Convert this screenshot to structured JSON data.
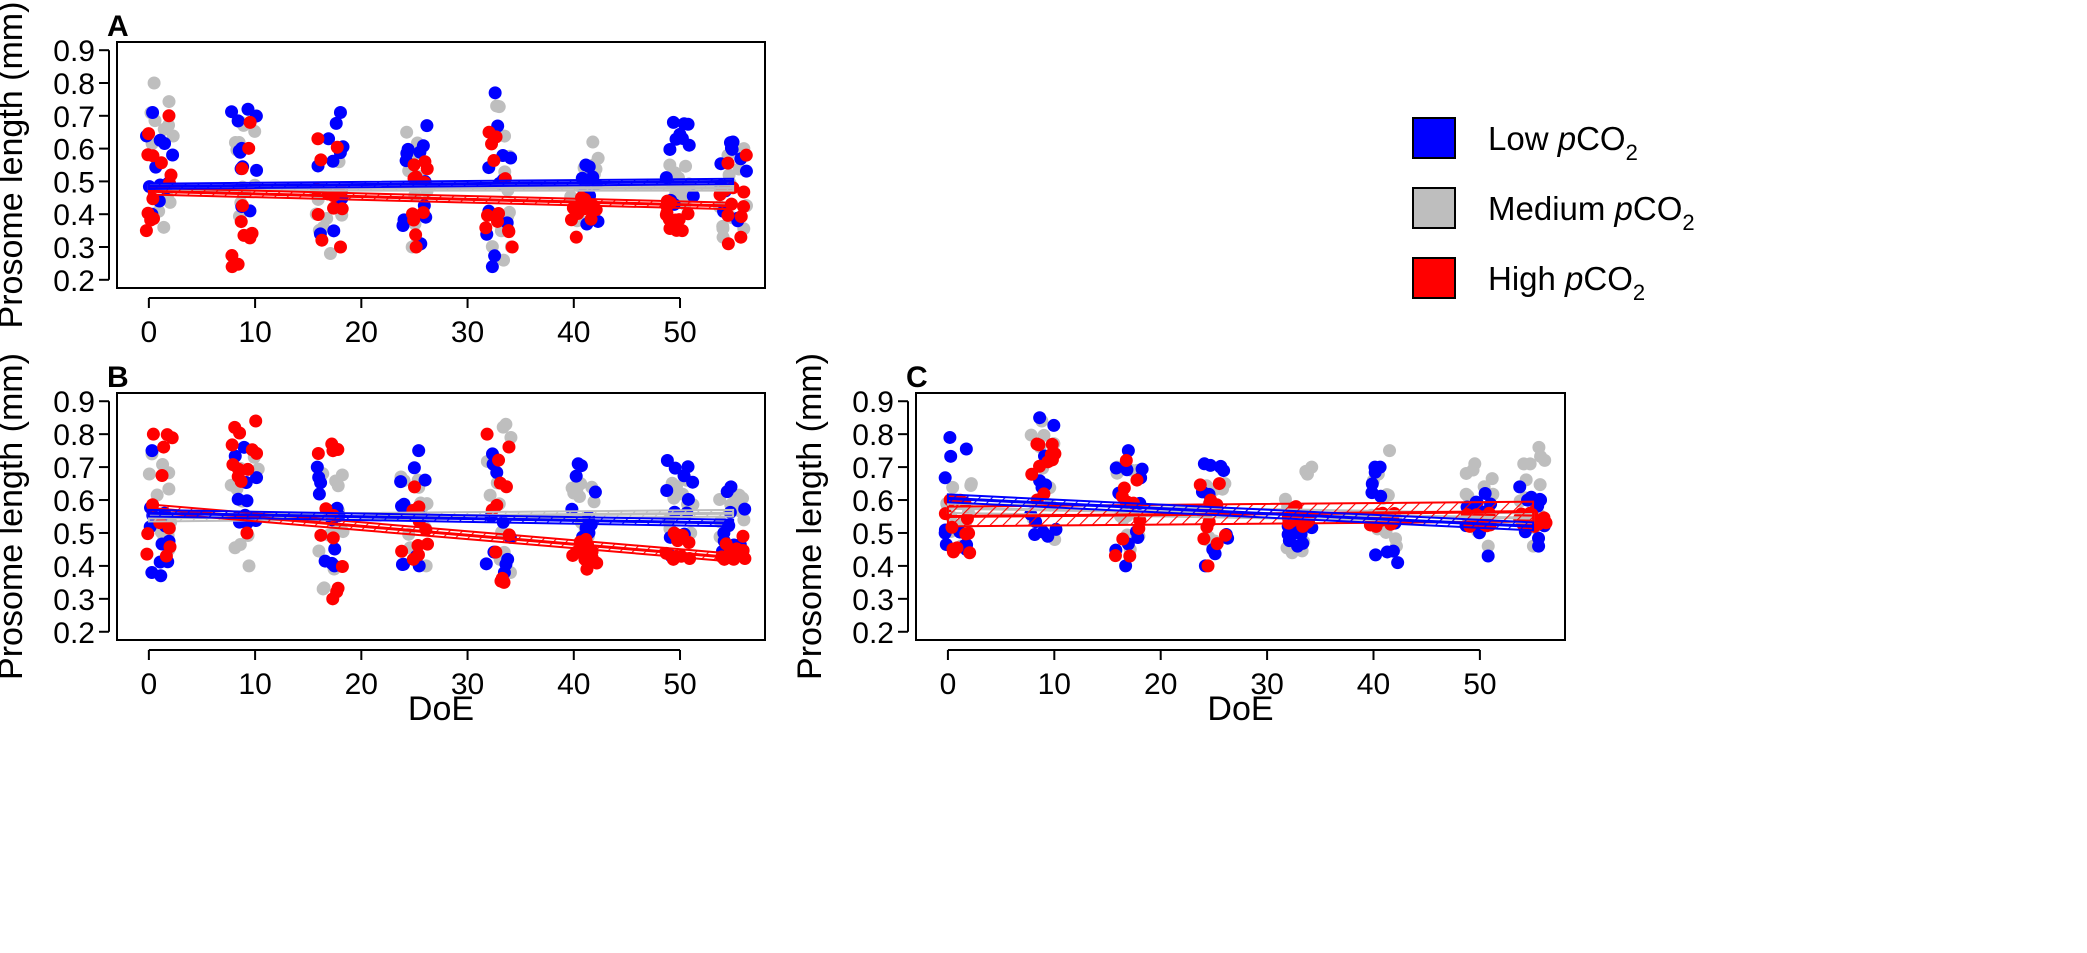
{
  "colors": {
    "low": "#0000ff",
    "medium": "#bebebe",
    "high": "#ff0000"
  },
  "legend": [
    {
      "key": "low",
      "prefix": "Low ",
      "italic": "p",
      "suffix": "CO",
      "sub": "2"
    },
    {
      "key": "medium",
      "prefix": "Medium ",
      "italic": "p",
      "suffix": "CO",
      "sub": "2"
    },
    {
      "key": "high",
      "prefix": "High ",
      "italic": "p",
      "suffix": "CO",
      "sub": "2"
    }
  ],
  "chart_data": [
    {
      "id": "A",
      "type": "scatter",
      "panel_label": "A",
      "ylabel": "Prosome length (mm)",
      "xlabel": "",
      "xlim": [
        -3,
        58
      ],
      "ylim": [
        0.175,
        0.925
      ],
      "xticks": [
        "0",
        "10",
        "20",
        "30",
        "40",
        "50"
      ],
      "yticks": [
        "0.2",
        "0.3",
        "0.4",
        "0.5",
        "0.6",
        "0.7",
        "0.8",
        "0.9"
      ],
      "days": [
        1,
        9,
        17,
        25,
        33,
        41,
        50,
        55
      ],
      "series": [
        {
          "name": "Low pCO2",
          "key": "low",
          "trend": [
            0.485,
            0.5
          ],
          "band": 0.008,
          "ranges": [
            [
              0.4,
              0.71
            ],
            [
              0.41,
              0.72
            ],
            [
              0.34,
              0.71
            ],
            [
              0.31,
              0.67
            ],
            [
              0.24,
              0.77
            ],
            [
              0.37,
              0.55
            ],
            [
              0.43,
              0.68
            ],
            [
              0.38,
              0.62
            ]
          ]
        },
        {
          "name": "Medium pCO2",
          "key": "medium",
          "trend": [
            0.48,
            0.48
          ],
          "band": 0.008,
          "ranges": [
            [
              0.36,
              0.8
            ],
            [
              0.34,
              0.68
            ],
            [
              0.28,
              0.56
            ],
            [
              0.3,
              0.65
            ],
            [
              0.26,
              0.73
            ],
            [
              0.38,
              0.62
            ],
            [
              0.43,
              0.55
            ],
            [
              0.33,
              0.6
            ]
          ]
        },
        {
          "name": "High pCO2",
          "key": "high",
          "trend": [
            0.47,
            0.425
          ],
          "band": 0.01,
          "ranges": [
            [
              0.35,
              0.7
            ],
            [
              0.24,
              0.68
            ],
            [
              0.3,
              0.63
            ],
            [
              0.3,
              0.56
            ],
            [
              0.3,
              0.65
            ],
            [
              0.33,
              0.45
            ],
            [
              0.35,
              0.44
            ],
            [
              0.31,
              0.58
            ]
          ]
        }
      ]
    },
    {
      "id": "B",
      "type": "scatter",
      "panel_label": "B",
      "ylabel": "Prosome length (mm)",
      "xlabel": "DoE",
      "xlim": [
        -3,
        58
      ],
      "ylim": [
        0.175,
        0.925
      ],
      "xticks": [
        "0",
        "10",
        "20",
        "30",
        "40",
        "50"
      ],
      "yticks": [
        "0.2",
        "0.3",
        "0.4",
        "0.5",
        "0.6",
        "0.7",
        "0.8",
        "0.9"
      ],
      "days": [
        1,
        9,
        17,
        25,
        33,
        41,
        50,
        55
      ],
      "series": [
        {
          "name": "Low pCO2",
          "key": "low",
          "trend": [
            0.56,
            0.53
          ],
          "band": 0.01,
          "ranges": [
            [
              0.37,
              0.75
            ],
            [
              0.53,
              0.76
            ],
            [
              0.4,
              0.7
            ],
            [
              0.4,
              0.75
            ],
            [
              0.38,
              0.74
            ],
            [
              0.45,
              0.71
            ],
            [
              0.43,
              0.72
            ],
            [
              0.44,
              0.64
            ]
          ]
        },
        {
          "name": "Medium pCO2",
          "key": "medium",
          "trend": [
            0.545,
            0.56
          ],
          "band": 0.01,
          "ranges": [
            [
              0.45,
              0.74
            ],
            [
              0.4,
              0.73
            ],
            [
              0.33,
              0.68
            ],
            [
              0.4,
              0.67
            ],
            [
              0.38,
              0.83
            ],
            [
              0.47,
              0.65
            ],
            [
              0.5,
              0.66
            ],
            [
              0.45,
              0.62
            ]
          ]
        },
        {
          "name": "High pCO2",
          "key": "high",
          "trend": [
            0.575,
            0.425
          ],
          "band": 0.012,
          "ranges": [
            [
              0.43,
              0.8
            ],
            [
              0.5,
              0.84
            ],
            [
              0.3,
              0.77
            ],
            [
              0.42,
              0.64
            ],
            [
              0.35,
              0.8
            ],
            [
              0.39,
              0.48
            ],
            [
              0.42,
              0.5
            ],
            [
              0.42,
              0.49
            ]
          ]
        }
      ]
    },
    {
      "id": "C",
      "type": "scatter",
      "panel_label": "C",
      "ylabel": "Prosome length (mm)",
      "xlabel": "DoE",
      "xlim": [
        -3,
        58
      ],
      "ylim": [
        0.175,
        0.925
      ],
      "xticks": [
        "0",
        "10",
        "20",
        "30",
        "40",
        "50"
      ],
      "yticks": [
        "0.2",
        "0.3",
        "0.4",
        "0.5",
        "0.6",
        "0.7",
        "0.8",
        "0.9"
      ],
      "days": [
        1,
        9,
        17,
        25,
        33,
        41,
        50,
        55
      ],
      "series": [
        {
          "name": "Low pCO2",
          "key": "low",
          "trend": [
            0.605,
            0.52
          ],
          "band": 0.012,
          "ranges": [
            [
              0.45,
              0.79
            ],
            [
              0.49,
              0.85
            ],
            [
              0.4,
              0.75
            ],
            [
              0.4,
              0.71
            ],
            [
              0.46,
              0.55
            ],
            [
              0.41,
              0.7
            ],
            [
              0.43,
              0.62
            ],
            [
              0.46,
              0.64
            ]
          ]
        },
        {
          "name": "Medium pCO2",
          "key": "medium",
          "trend": [
            0.575,
            0.545
          ],
          "band": 0.014,
          "ranges": [
            [
              0.46,
              0.65
            ],
            [
              0.48,
              0.84
            ],
            [
              0.45,
              0.7
            ],
            [
              0.46,
              0.65
            ],
            [
              0.44,
              0.7
            ],
            [
              0.46,
              0.75
            ],
            [
              0.46,
              0.71
            ],
            [
              0.46,
              0.76
            ]
          ]
        },
        {
          "name": "High pCO2",
          "key": "high",
          "trend": [
            0.55,
            0.565
          ],
          "band": 0.03,
          "ranges": [
            [
              0.44,
              0.6
            ],
            [
              0.6,
              0.77
            ],
            [
              0.43,
              0.72
            ],
            [
              0.4,
              0.65
            ],
            [
              0.52,
              0.58
            ],
            [
              0.52,
              0.56
            ],
            [
              0.52,
              0.56
            ],
            [
              0.52,
              0.56
            ]
          ]
        }
      ]
    }
  ]
}
